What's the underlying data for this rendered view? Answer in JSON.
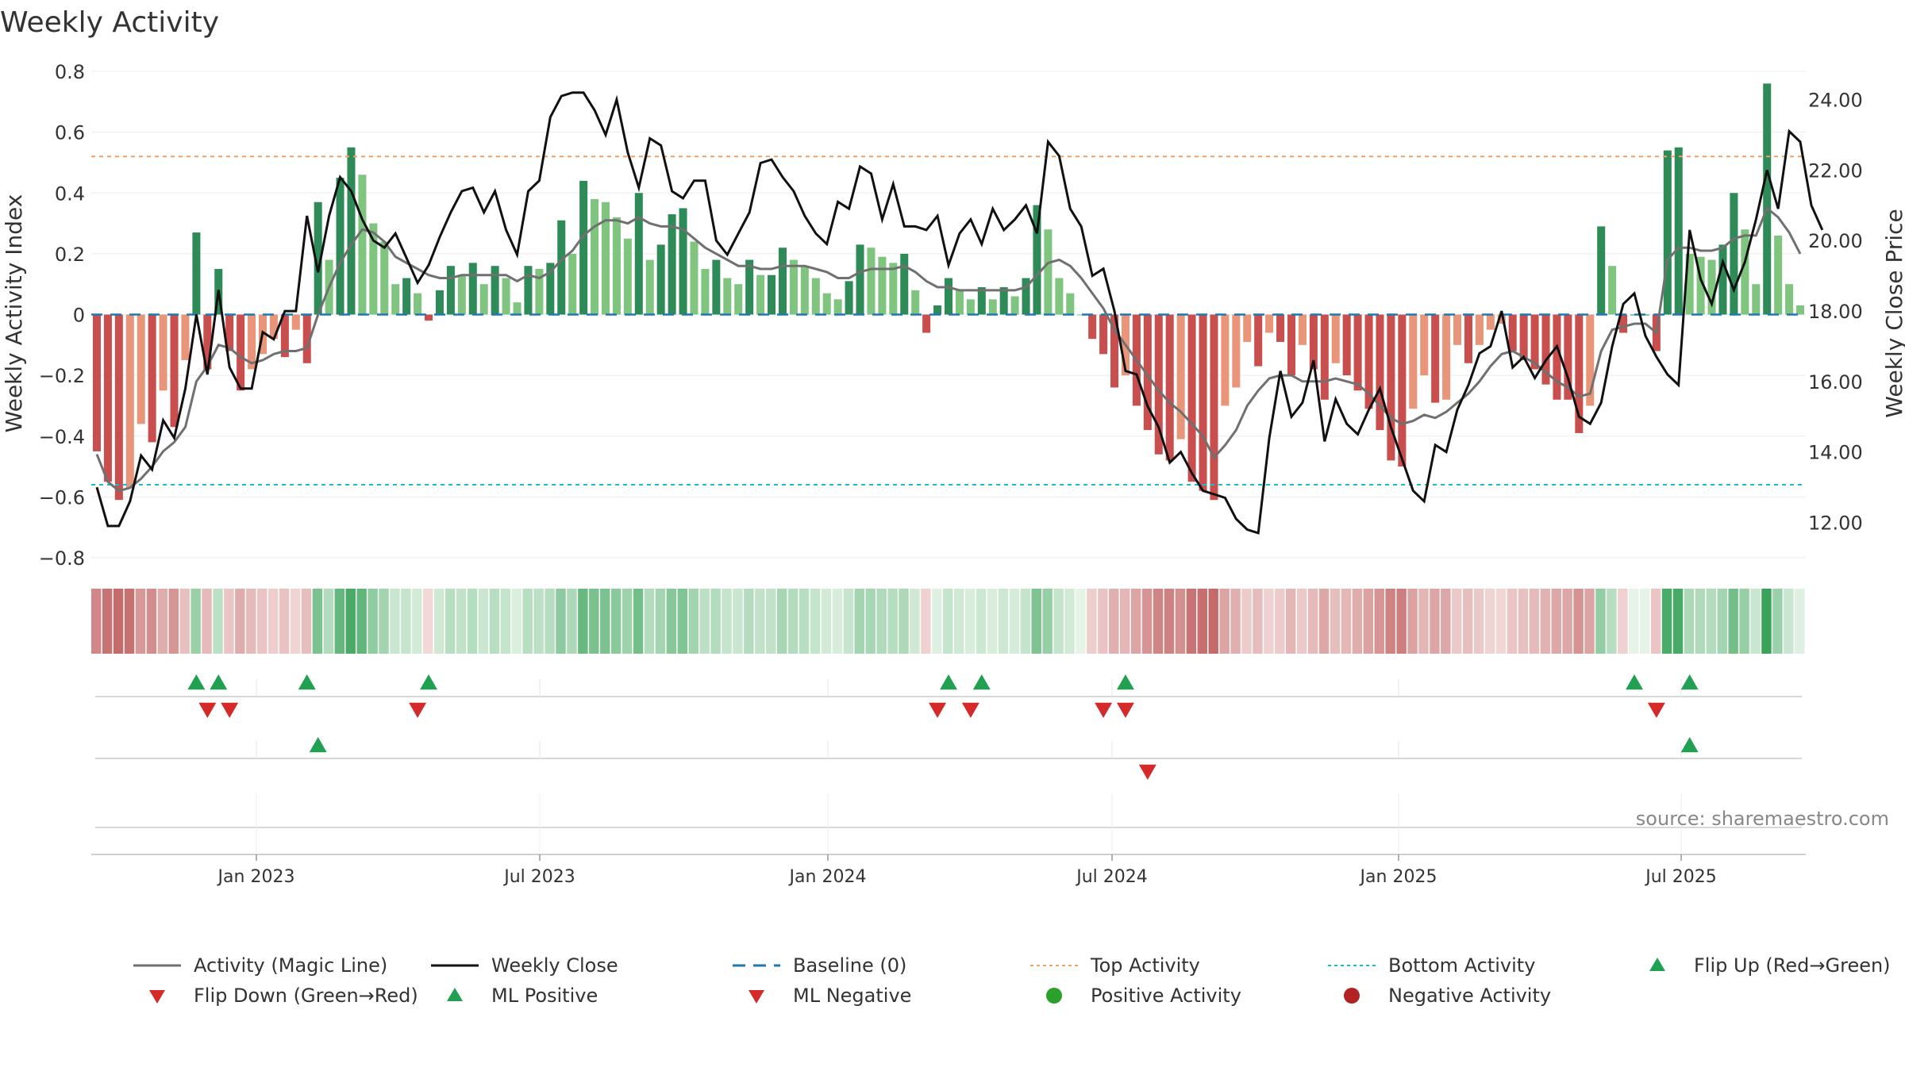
{
  "title": "Weekly Activity",
  "source": "source: sharemaestro.com",
  "colors": {
    "pos_dark": "#2e8b57",
    "pos_light": "#7fc47f",
    "neg_dark": "#c94f4f",
    "neg_light": "#e8957a",
    "magic": "#707070",
    "close": "#111111",
    "baseline": "#1f77b4",
    "top": "#f0a060",
    "bottom": "#17becf",
    "flip_up": "#22a052",
    "flip_down": "#d42a2a",
    "dot_pos": "#2ca02c",
    "dot_neg": "#b22222"
  },
  "chart_data": {
    "type": "bar+line",
    "title": "Weekly Activity",
    "ylabel": "Weekly Activity Index",
    "y2label": "Weekly Close Price",
    "ylim": [
      -0.8,
      0.8
    ],
    "y2lim": [
      11,
      24.8
    ],
    "yticks": [
      "0.8",
      "0.6",
      "0.4",
      "0.2",
      "0",
      "−0.2",
      "−0.4",
      "−0.6",
      "−0.8"
    ],
    "y2ticks": [
      "24.00",
      "22.00",
      "20.00",
      "18.00",
      "16.00",
      "14.00",
      "12.00"
    ],
    "xticks": [
      "Jan 2023",
      "Jul 2023",
      "Jan 2024",
      "Jul 2024",
      "Jan 2025",
      "Jul 2025"
    ],
    "top_activity": 0.52,
    "bottom_activity": -0.56,
    "baseline": 0,
    "activity": [
      -0.45,
      -0.55,
      -0.61,
      -0.57,
      -0.36,
      -0.42,
      -0.25,
      -0.37,
      -0.15,
      0.27,
      -0.18,
      0.15,
      -0.12,
      -0.25,
      -0.18,
      -0.13,
      -0.08,
      -0.14,
      -0.05,
      -0.16,
      0.37,
      0.18,
      0.45,
      0.55,
      0.46,
      0.3,
      0.24,
      0.1,
      0.12,
      0.07,
      -0.02,
      0.08,
      0.16,
      0.13,
      0.17,
      0.1,
      0.16,
      0.12,
      0.04,
      0.16,
      0.15,
      0.17,
      0.31,
      0.2,
      0.44,
      0.38,
      0.37,
      0.32,
      0.25,
      0.4,
      0.18,
      0.23,
      0.33,
      0.35,
      0.24,
      0.15,
      0.18,
      0.12,
      0.1,
      0.18,
      0.13,
      0.13,
      0.22,
      0.18,
      0.16,
      0.12,
      0.07,
      0.05,
      0.11,
      0.23,
      0.22,
      0.19,
      0.17,
      0.2,
      0.08,
      -0.06,
      0.03,
      0.12,
      0.08,
      0.05,
      0.09,
      0.05,
      0.09,
      0.06,
      0.12,
      0.36,
      0.28,
      0.12,
      0.07,
      0.0,
      -0.08,
      -0.13,
      -0.24,
      -0.2,
      -0.3,
      -0.38,
      -0.46,
      -0.48,
      -0.41,
      -0.55,
      -0.58,
      -0.61,
      -0.3,
      -0.24,
      -0.09,
      -0.17,
      -0.06,
      -0.09,
      -0.2,
      -0.1,
      -0.18,
      -0.28,
      -0.16,
      -0.2,
      -0.25,
      -0.31,
      -0.38,
      -0.48,
      -0.5,
      -0.31,
      -0.2,
      -0.29,
      -0.28,
      -0.1,
      -0.16,
      -0.1,
      -0.05,
      -0.03,
      -0.12,
      -0.15,
      -0.18,
      -0.23,
      -0.28,
      -0.28,
      -0.39,
      -0.3,
      0.29,
      0.16,
      -0.06,
      0.0,
      0.0,
      -0.12,
      0.54,
      0.55,
      0.2,
      0.19,
      0.18,
      0.23,
      0.4,
      0.28,
      0.1,
      0.76,
      0.26,
      0.1,
      0.03
    ],
    "magic_line": [
      -0.46,
      -0.55,
      -0.58,
      -0.57,
      -0.54,
      -0.5,
      -0.45,
      -0.42,
      -0.37,
      -0.22,
      -0.17,
      -0.1,
      -0.11,
      -0.14,
      -0.16,
      -0.15,
      -0.13,
      -0.12,
      -0.12,
      -0.11,
      0.0,
      0.09,
      0.17,
      0.23,
      0.28,
      0.27,
      0.24,
      0.19,
      0.17,
      0.15,
      0.13,
      0.12,
      0.12,
      0.13,
      0.13,
      0.13,
      0.13,
      0.13,
      0.11,
      0.13,
      0.12,
      0.14,
      0.18,
      0.21,
      0.26,
      0.29,
      0.31,
      0.31,
      0.3,
      0.32,
      0.3,
      0.29,
      0.29,
      0.28,
      0.25,
      0.22,
      0.2,
      0.18,
      0.16,
      0.16,
      0.15,
      0.15,
      0.16,
      0.16,
      0.16,
      0.15,
      0.14,
      0.12,
      0.12,
      0.14,
      0.15,
      0.15,
      0.15,
      0.16,
      0.14,
      0.11,
      0.09,
      0.09,
      0.08,
      0.08,
      0.08,
      0.08,
      0.08,
      0.08,
      0.09,
      0.13,
      0.17,
      0.18,
      0.16,
      0.12,
      0.07,
      0.02,
      -0.05,
      -0.1,
      -0.15,
      -0.2,
      -0.25,
      -0.29,
      -0.32,
      -0.36,
      -0.4,
      -0.47,
      -0.43,
      -0.38,
      -0.3,
      -0.25,
      -0.21,
      -0.2,
      -0.2,
      -0.22,
      -0.22,
      -0.22,
      -0.21,
      -0.22,
      -0.23,
      -0.26,
      -0.3,
      -0.34,
      -0.36,
      -0.35,
      -0.33,
      -0.34,
      -0.32,
      -0.29,
      -0.26,
      -0.22,
      -0.17,
      -0.13,
      -0.12,
      -0.14,
      -0.16,
      -0.19,
      -0.22,
      -0.24,
      -0.27,
      -0.26,
      -0.12,
      -0.05,
      -0.04,
      -0.03,
      -0.03,
      -0.06,
      0.18,
      0.22,
      0.22,
      0.21,
      0.21,
      0.22,
      0.25,
      0.26,
      0.26,
      0.35,
      0.32,
      0.27,
      0.2
    ],
    "close": [
      13.0,
      11.9,
      11.9,
      12.6,
      13.9,
      13.5,
      14.9,
      14.4,
      15.8,
      17.9,
      16.2,
      18.6,
      16.4,
      15.8,
      15.8,
      17.4,
      17.2,
      18.0,
      18.0,
      20.7,
      19.1,
      20.7,
      21.8,
      21.4,
      20.6,
      20.0,
      19.8,
      20.2,
      19.5,
      18.8,
      19.3,
      20.1,
      20.8,
      21.4,
      21.5,
      20.8,
      21.4,
      20.3,
      19.6,
      21.4,
      21.7,
      23.5,
      24.1,
      24.2,
      24.2,
      23.7,
      23.0,
      24.0,
      22.5,
      21.5,
      22.9,
      22.7,
      21.4,
      21.2,
      21.7,
      21.7,
      20.0,
      19.6,
      20.2,
      20.8,
      22.2,
      22.3,
      21.8,
      21.4,
      20.7,
      20.2,
      19.9,
      21.1,
      20.9,
      22.1,
      21.9,
      20.6,
      21.6,
      20.4,
      20.4,
      20.3,
      20.7,
      19.3,
      20.2,
      20.6,
      19.9,
      20.9,
      20.3,
      20.6,
      21.0,
      20.2,
      22.8,
      22.4,
      20.9,
      20.4,
      19.0,
      19.2,
      18.0,
      16.3,
      16.2,
      15.3,
      14.7,
      13.7,
      14.0,
      13.4,
      12.9,
      12.8,
      12.7,
      12.1,
      11.8,
      11.7,
      14.4,
      16.3,
      15.0,
      15.4,
      16.6,
      14.3,
      15.5,
      14.8,
      14.5,
      15.2,
      15.8,
      14.7,
      13.8,
      12.9,
      12.6,
      14.2,
      14.0,
      15.2,
      15.9,
      16.8,
      17.0,
      18.0,
      16.4,
      16.7,
      16.1,
      16.6,
      17.0,
      16.1,
      15.0,
      14.8,
      15.4,
      17.0,
      18.2,
      18.5,
      17.3,
      16.7,
      16.2,
      15.9,
      20.3,
      18.9,
      18.2,
      19.4,
      18.6,
      19.4,
      20.6,
      22.0,
      20.9,
      23.1,
      22.8,
      21.0,
      20.3
    ],
    "heat_strip": "weekly activity heat (red = negative, green = positive)",
    "flip_row1_up": [
      4,
      5,
      8,
      12,
      35,
      36,
      41,
      52,
      53
    ],
    "flip_row1_down": [
      5,
      6,
      11,
      34,
      35,
      40,
      41,
      52
    ],
    "ml_row_up": [
      8,
      53
    ],
    "ml_row_down": [
      42
    ],
    "legend": [
      {
        "label": "Activity (Magic Line)",
        "kind": "line",
        "color": "#707070"
      },
      {
        "label": "Weekly Close",
        "kind": "line",
        "color": "#111111"
      },
      {
        "label": "Baseline (0)",
        "kind": "dash",
        "color": "#1f77b4"
      },
      {
        "label": "Top Activity",
        "kind": "dot-line",
        "color": "#f0a060"
      },
      {
        "label": "Bottom Activity",
        "kind": "dot-line",
        "color": "#17becf"
      },
      {
        "label": "Flip Up (Red→Green)",
        "kind": "tri-up",
        "color": "#22a052"
      },
      {
        "label": "Flip Down (Green→Red)",
        "kind": "tri-down",
        "color": "#d42a2a"
      },
      {
        "label": "ML Positive",
        "kind": "tri-up",
        "color": "#22a052"
      },
      {
        "label": "ML Negative",
        "kind": "tri-down",
        "color": "#d42a2a"
      },
      {
        "label": "Positive Activity",
        "kind": "dot",
        "color": "#2ca02c"
      },
      {
        "label": "Negative Activity",
        "kind": "dot",
        "color": "#b22222"
      }
    ]
  }
}
